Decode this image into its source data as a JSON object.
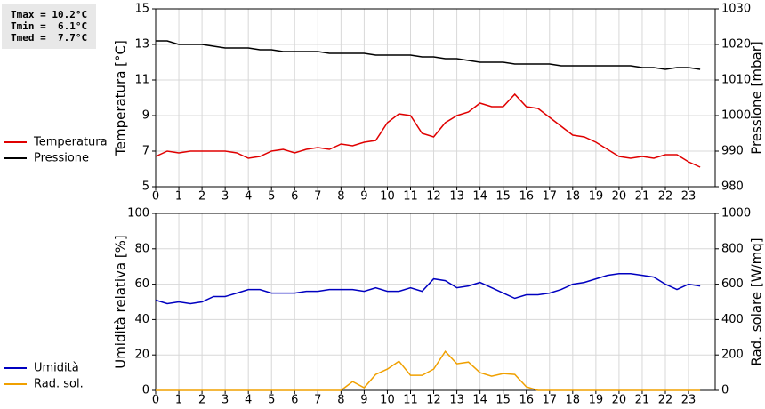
{
  "chart_data": [
    {
      "type": "line",
      "annotations": [
        "Tmax = 10.2°C",
        "Tmin =  6.1°C",
        "Tmed =  7.7°C"
      ],
      "ylabel": "Temperatura [°C]",
      "y2label": "Pressione [mbar]",
      "xlim": [
        0,
        24.15
      ],
      "xticks": [
        0,
        1,
        2,
        3,
        4,
        5,
        6,
        7,
        8,
        9,
        10,
        11,
        12,
        13,
        14,
        15,
        16,
        17,
        18,
        19,
        20,
        21,
        22,
        23
      ],
      "ylim": [
        5,
        15
      ],
      "yticks": [
        5,
        7,
        9,
        11,
        13,
        15
      ],
      "y2lim": [
        980,
        1030
      ],
      "y2ticks": [
        980,
        990,
        1000,
        1010,
        1020,
        1030
      ],
      "grid": true,
      "x": [
        0,
        0.5,
        1,
        1.5,
        2,
        2.5,
        3,
        3.5,
        4,
        4.5,
        5,
        5.5,
        6,
        6.5,
        7,
        7.5,
        8,
        8.5,
        9,
        9.5,
        10,
        10.5,
        11,
        11.5,
        12,
        12.5,
        13,
        13.5,
        14,
        14.5,
        15,
        15.5,
        16,
        16.5,
        17,
        17.5,
        18,
        18.5,
        19,
        19.5,
        20,
        20.5,
        21,
        21.5,
        22,
        22.5,
        23,
        23.5
      ],
      "series": [
        {
          "name": "Temperatura",
          "color": "#e00000",
          "values": [
            6.7,
            7.0,
            6.9,
            7.0,
            7.0,
            7.0,
            7.0,
            6.9,
            6.6,
            6.7,
            7.0,
            7.1,
            6.9,
            7.1,
            7.2,
            7.1,
            7.4,
            7.3,
            7.5,
            7.6,
            8.6,
            9.1,
            9.0,
            8.0,
            7.8,
            8.6,
            9.0,
            9.2,
            9.7,
            9.5,
            9.5,
            10.2,
            9.5,
            9.4,
            8.9,
            8.4,
            7.9,
            7.8,
            7.5,
            7.1,
            6.7,
            6.6,
            6.7,
            6.6,
            6.8,
            6.8,
            6.4,
            6.1
          ]
        },
        {
          "name": "Pressione",
          "color": "#000000",
          "axis": "y2",
          "values": [
            1021,
            1021,
            1020,
            1020,
            1020,
            1019.5,
            1019,
            1019,
            1019,
            1018.5,
            1018.5,
            1018,
            1018,
            1018,
            1018,
            1017.5,
            1017.5,
            1017.5,
            1017.5,
            1017,
            1017,
            1017,
            1017,
            1016.5,
            1016.5,
            1016,
            1016,
            1015.5,
            1015,
            1015,
            1015,
            1014.5,
            1014.5,
            1014.5,
            1014.5,
            1014,
            1014,
            1014,
            1014,
            1014,
            1014,
            1014,
            1013.5,
            1013.5,
            1013,
            1013.5,
            1013.5,
            1013
          ]
        }
      ]
    },
    {
      "type": "line",
      "ylabel": "Umidità relativa [%]",
      "y2label": "Rad. solare [W/mq]",
      "xlim": [
        0,
        24.15
      ],
      "xticks": [
        0,
        1,
        2,
        3,
        4,
        5,
        6,
        7,
        8,
        9,
        10,
        11,
        12,
        13,
        14,
        15,
        16,
        17,
        18,
        19,
        20,
        21,
        22,
        23
      ],
      "ylim": [
        0,
        100
      ],
      "yticks": [
        0,
        20,
        40,
        60,
        80,
        100
      ],
      "y2lim": [
        0,
        1000
      ],
      "y2ticks": [
        0,
        200,
        400,
        600,
        800,
        1000
      ],
      "grid": true,
      "x": [
        0,
        0.5,
        1,
        1.5,
        2,
        2.5,
        3,
        3.5,
        4,
        4.5,
        5,
        5.5,
        6,
        6.5,
        7,
        7.5,
        8,
        8.5,
        9,
        9.5,
        10,
        10.5,
        11,
        11.5,
        12,
        12.5,
        13,
        13.5,
        14,
        14.5,
        15,
        15.5,
        16,
        16.5,
        17,
        17.5,
        18,
        18.5,
        19,
        19.5,
        20,
        20.5,
        21,
        21.5,
        22,
        22.5,
        23,
        23.5
      ],
      "series": [
        {
          "name": "Umidità",
          "color": "#0000c0",
          "values": [
            51,
            49,
            50,
            49,
            50,
            53,
            53,
            55,
            57,
            57,
            55,
            55,
            55,
            56,
            56,
            57,
            57,
            57,
            56,
            58,
            56,
            56,
            58,
            56,
            63,
            62,
            58,
            59,
            61,
            58,
            55,
            52,
            54,
            54,
            55,
            57,
            60,
            61,
            63,
            65,
            66,
            66,
            65,
            64,
            60,
            57,
            60,
            59
          ]
        },
        {
          "name": "Rad. sol.",
          "color": "#f0a000",
          "axis": "y2",
          "values": [
            0,
            0,
            0,
            0,
            0,
            0,
            0,
            0,
            0,
            0,
            0,
            0,
            0,
            0,
            0,
            0,
            0,
            50,
            15,
            90,
            120,
            165,
            85,
            85,
            120,
            220,
            150,
            160,
            100,
            80,
            95,
            90,
            20,
            0,
            0,
            0,
            0,
            0,
            0,
            0,
            0,
            0,
            0,
            0,
            0,
            0,
            0,
            0
          ]
        }
      ]
    }
  ]
}
